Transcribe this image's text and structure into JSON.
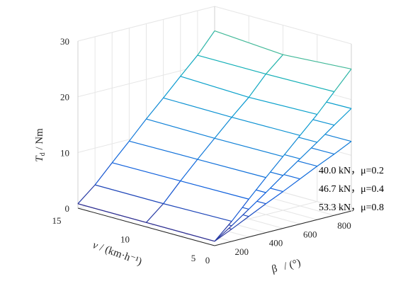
{
  "chart_data": {
    "type": "surface-3d",
    "x_axis": {
      "label_main": "β",
      "label_unit": "/ (°)",
      "ticks": [
        "0",
        "200",
        "400",
        "600",
        "800"
      ],
      "range": [
        0,
        800
      ]
    },
    "y_axis": {
      "label_main": "v",
      "label_unit": "/ (km·h⁻¹)",
      "ticks": [
        "5",
        "10",
        "15"
      ],
      "range": [
        5,
        15
      ]
    },
    "z_axis": {
      "label_main": "T",
      "label_sub": "d",
      "label_unit": " / Nm",
      "ticks": [
        "0",
        "10",
        "20",
        "30"
      ],
      "range": [
        0,
        30
      ]
    },
    "grid": true,
    "beta": [
      0,
      100,
      200,
      300,
      400,
      500,
      600,
      700,
      800
    ],
    "v": [
      5,
      10,
      15
    ],
    "series": [
      {
        "name": "40.0 kN，μ=0.2",
        "torque": [
          [
            0.8,
            3.6,
            6.8,
            9.9,
            12.9,
            15.9,
            18.9,
            22.2,
            25.5
          ],
          [
            0.8,
            3.4,
            6.7,
            9.8,
            12.8,
            15.8,
            18.6,
            22.0,
            24.7
          ],
          [
            0.8,
            3.4,
            6.6,
            9.7,
            12.9,
            15.9,
            19.0,
            22.0,
            25.6
          ]
        ]
      },
      {
        "name": "46.7 kN，μ=0.4",
        "torque": [
          [
            0.8,
            2.8,
            5.0,
            7.2,
            9.5,
            11.7,
            13.9,
            16.2,
            18.4
          ],
          [
            0.8,
            2.7,
            4.9,
            7.1,
            9.4,
            11.6,
            13.8,
            16.0,
            18.2
          ],
          [
            0.8,
            2.7,
            4.9,
            7.1,
            9.4,
            11.6,
            13.8,
            16.1,
            18.3
          ]
        ]
      },
      {
        "name": "53.3 kN，μ=0.8",
        "torque": [
          [
            0.8,
            2.2,
            3.7,
            5.2,
            6.6,
            8.1,
            9.6,
            11.0,
            12.5
          ],
          [
            0.8,
            2.1,
            3.6,
            5.1,
            6.5,
            8.0,
            9.5,
            10.9,
            12.4
          ],
          [
            0.8,
            2.1,
            3.6,
            5.1,
            6.5,
            8.0,
            9.5,
            10.9,
            12.4
          ]
        ]
      }
    ],
    "colormap": "parula",
    "colorbar_range": [
      0,
      30
    ]
  }
}
